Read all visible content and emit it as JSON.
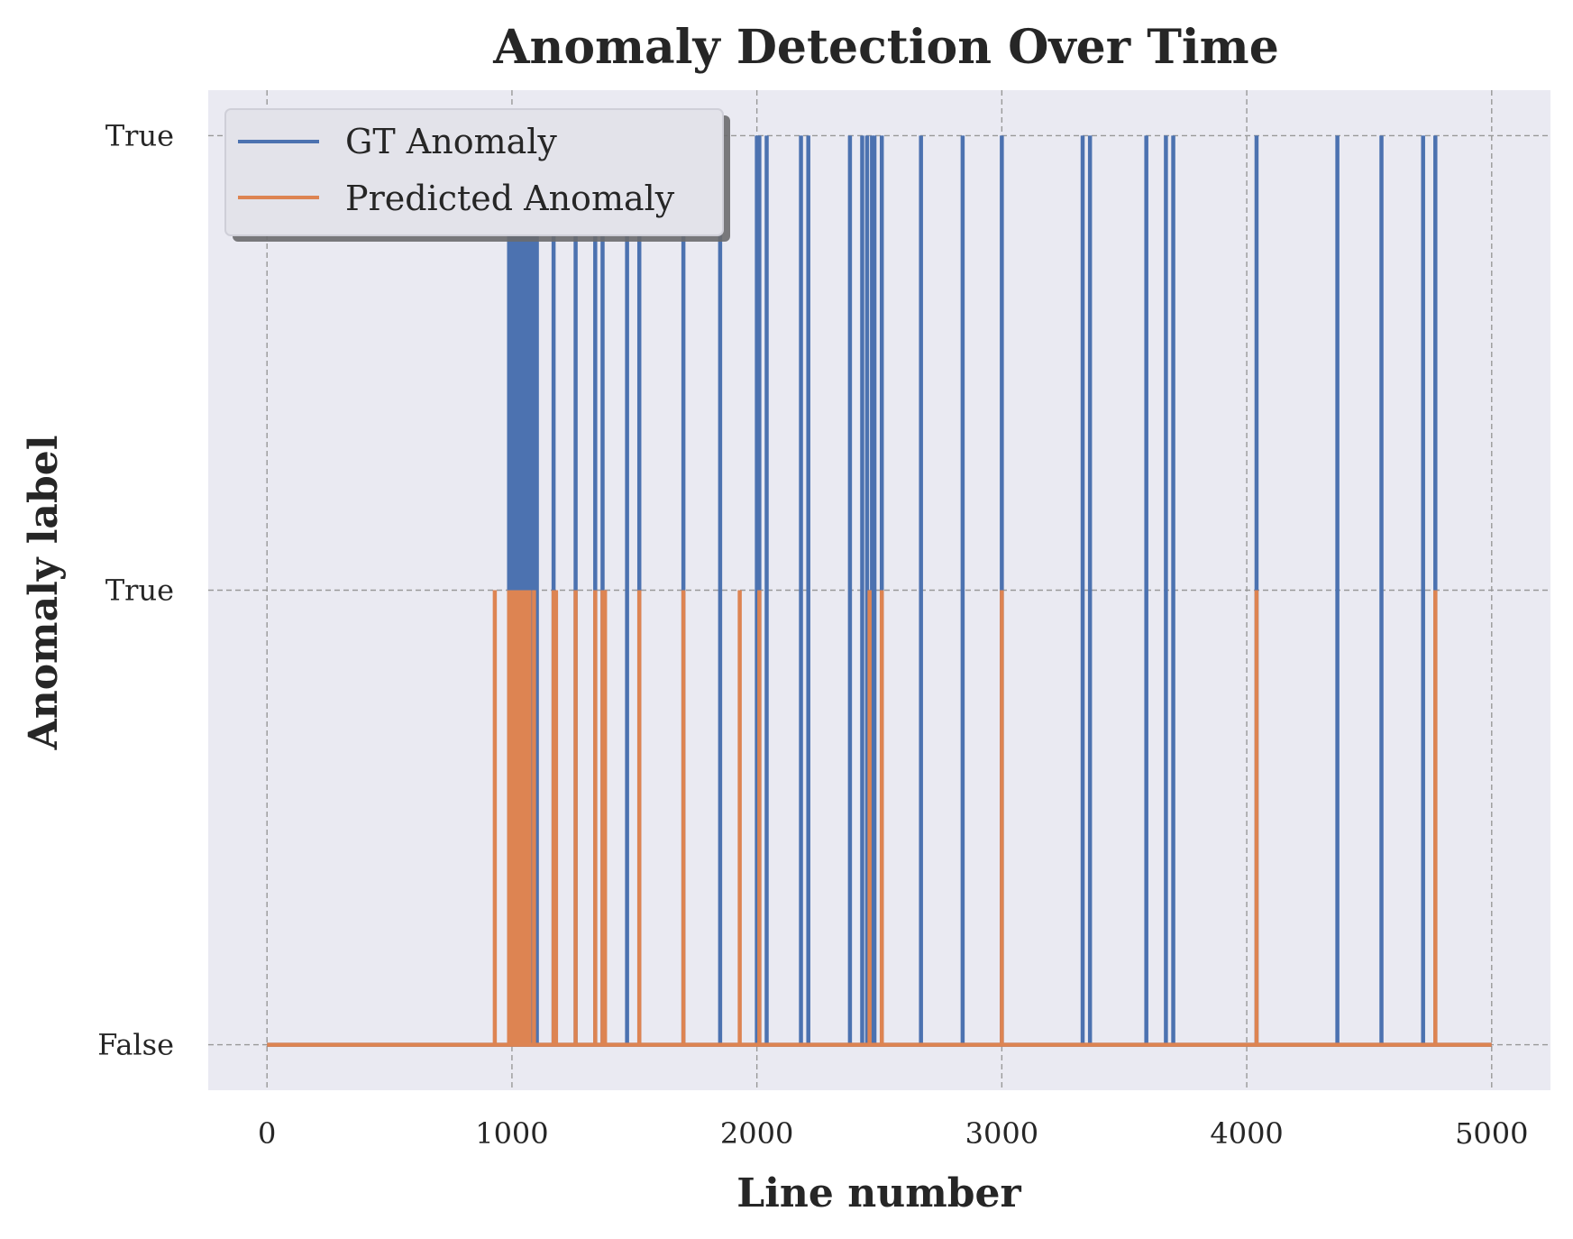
{
  "chart_data": {
    "type": "line",
    "title": "Anomaly Detection Over Time",
    "xlabel": "Line number",
    "ylabel": "Anomaly label",
    "xlim": [
      -240,
      5240
    ],
    "xticks": [
      0,
      1000,
      2000,
      3000,
      4000,
      5000
    ],
    "xtick_labels": [
      "0",
      "1000",
      "2000",
      "3000",
      "4000",
      "5000"
    ],
    "ylim": [
      -0.05,
      1.05
    ],
    "yticks": [
      0,
      0.5,
      1
    ],
    "ytick_labels": [
      "False",
      "True",
      "True"
    ],
    "grid": true,
    "legend_position": "upper left",
    "background": "#EAEAF2",
    "series": [
      {
        "name": "GT Anomaly",
        "color": "#4C72B0",
        "baseline": 0,
        "peak": 1,
        "x_range": [
          0,
          5000
        ],
        "spike_bands": [
          [
            980,
            1110
          ]
        ],
        "spikes": [
          1085,
          1170,
          1260,
          1340,
          1370,
          1470,
          1520,
          1700,
          1850,
          2000,
          2010,
          2040,
          2180,
          2210,
          2380,
          2430,
          2450,
          2470,
          2480,
          2510,
          2670,
          2840,
          3000,
          3330,
          3360,
          3590,
          3670,
          3700,
          4040,
          4370,
          4550,
          4720,
          4770
        ]
      },
      {
        "name": "Predicted Anomaly",
        "color": "#DD8452",
        "baseline": 0,
        "peak": 0.5,
        "x_range": [
          0,
          5000
        ],
        "spike_bands": [
          [
            980,
            1080
          ]
        ],
        "spikes": [
          930,
          1090,
          1170,
          1180,
          1260,
          1340,
          1370,
          1380,
          1520,
          1700,
          1930,
          2010,
          2460,
          2510,
          3000,
          4040,
          4770
        ]
      }
    ]
  }
}
